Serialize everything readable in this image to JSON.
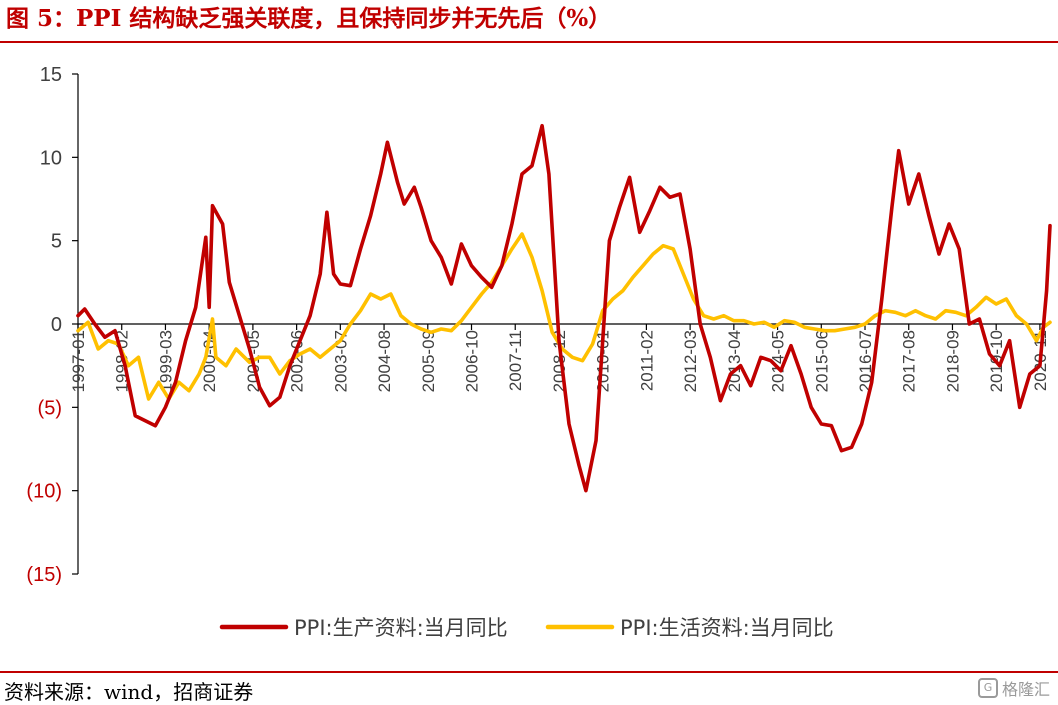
{
  "title": "图 5：PPI 结构缺乏强关联度，且保持同步并无先后（%）",
  "source": "资料来源：wind，招商证券",
  "watermark": "格隆汇",
  "chart_data": {
    "type": "line",
    "title": "图 5：PPI 结构缺乏强关联度，且保持同步并无先后（%）",
    "xlabel": "",
    "ylabel": "",
    "ylim": [
      -15,
      15
    ],
    "y_ticks": [
      15,
      10,
      5,
      0,
      -5,
      -10,
      -15
    ],
    "y_tick_labels": [
      "15",
      "10",
      "5",
      "0",
      "(5)",
      "(10)",
      "(15)"
    ],
    "x_range": [
      "1997-01",
      "2021-02"
    ],
    "x_tick_labels": [
      "1997-01",
      "1998-02",
      "1999-03",
      "2000-04",
      "2001-05",
      "2002-06",
      "2003-07",
      "2004-08",
      "2005-09",
      "2006-10",
      "2007-11",
      "2008-12",
      "2010-01",
      "2011-02",
      "2012-03",
      "2013-04",
      "2014-05",
      "2015-06",
      "2016-07",
      "2017-08",
      "2018-09",
      "2019-10",
      "2020-11"
    ],
    "grid": false,
    "legend_position": "bottom",
    "colors": {
      "series1": "#c00000",
      "series2": "#ffc000",
      "negative_tick": "#c00000",
      "axis": "#000000"
    },
    "series": [
      {
        "name": "PPI:生产资料:当月同比",
        "points": [
          [
            "1997-01",
            0.5
          ],
          [
            "1997-03",
            0.9
          ],
          [
            "1997-06",
            0
          ],
          [
            "1997-09",
            -0.8
          ],
          [
            "1997-12",
            -0.4
          ],
          [
            "1998-03",
            -2.5
          ],
          [
            "1998-06",
            -5.5
          ],
          [
            "1998-09",
            -5.8
          ],
          [
            "1998-12",
            -6.1
          ],
          [
            "1999-03",
            -5
          ],
          [
            "1999-06",
            -3.5
          ],
          [
            "1999-09",
            -1
          ],
          [
            "1999-12",
            1
          ],
          [
            "2000-03",
            5.2
          ],
          [
            "2000-04",
            1
          ],
          [
            "2000-05",
            7.1
          ],
          [
            "2000-08",
            6
          ],
          [
            "2000-10",
            2.5
          ],
          [
            "2001-01",
            0.5
          ],
          [
            "2001-04",
            -1.5
          ],
          [
            "2001-07",
            -3.8
          ],
          [
            "2001-10",
            -4.9
          ],
          [
            "2002-01",
            -4.4
          ],
          [
            "2002-04",
            -2.5
          ],
          [
            "2002-07",
            -1
          ],
          [
            "2002-10",
            0.5
          ],
          [
            "2003-01",
            3
          ],
          [
            "2003-03",
            6.7
          ],
          [
            "2003-05",
            3
          ],
          [
            "2003-07",
            2.4
          ],
          [
            "2003-10",
            2.3
          ],
          [
            "2004-01",
            4.5
          ],
          [
            "2004-04",
            6.5
          ],
          [
            "2004-07",
            9
          ],
          [
            "2004-09",
            10.9
          ],
          [
            "2004-12",
            8.5
          ],
          [
            "2005-02",
            7.2
          ],
          [
            "2005-05",
            8.2
          ],
          [
            "2005-07",
            7
          ],
          [
            "2005-10",
            5
          ],
          [
            "2006-01",
            4
          ],
          [
            "2006-04",
            2.4
          ],
          [
            "2006-07",
            4.8
          ],
          [
            "2006-10",
            3.5
          ],
          [
            "2007-01",
            2.8
          ],
          [
            "2007-04",
            2.2
          ],
          [
            "2007-07",
            3.5
          ],
          [
            "2007-10",
            6
          ],
          [
            "2008-01",
            9
          ],
          [
            "2008-04",
            9.5
          ],
          [
            "2008-07",
            11.9
          ],
          [
            "2008-09",
            9
          ],
          [
            "2008-12",
            -1
          ],
          [
            "2009-03",
            -6
          ],
          [
            "2009-06",
            -8.5
          ],
          [
            "2009-08",
            -10
          ],
          [
            "2009-11",
            -7
          ],
          [
            "2010-01",
            -1
          ],
          [
            "2010-03",
            5
          ],
          [
            "2010-06",
            7
          ],
          [
            "2010-09",
            8.8
          ],
          [
            "2010-12",
            5.5
          ],
          [
            "2011-03",
            6.8
          ],
          [
            "2011-06",
            8.2
          ],
          [
            "2011-09",
            7.6
          ],
          [
            "2011-12",
            7.8
          ],
          [
            "2012-03",
            4.5
          ],
          [
            "2012-06",
            0
          ],
          [
            "2012-09",
            -2
          ],
          [
            "2012-12",
            -4.6
          ],
          [
            "2013-03",
            -3
          ],
          [
            "2013-06",
            -2.5
          ],
          [
            "2013-09",
            -3.7
          ],
          [
            "2013-12",
            -2
          ],
          [
            "2014-03",
            -2.2
          ],
          [
            "2014-06",
            -2.8
          ],
          [
            "2014-09",
            -1.3
          ],
          [
            "2014-12",
            -3
          ],
          [
            "2015-03",
            -5
          ],
          [
            "2015-06",
            -6
          ],
          [
            "2015-09",
            -6.1
          ],
          [
            "2015-12",
            -7.6
          ],
          [
            "2016-03",
            -7.4
          ],
          [
            "2016-06",
            -6
          ],
          [
            "2016-09",
            -3.5
          ],
          [
            "2016-12",
            1.5
          ],
          [
            "2017-03",
            7
          ],
          [
            "2017-05",
            10.4
          ],
          [
            "2017-08",
            7.2
          ],
          [
            "2017-11",
            9
          ],
          [
            "2018-02",
            6.5
          ],
          [
            "2018-05",
            4.2
          ],
          [
            "2018-08",
            6
          ],
          [
            "2018-11",
            4.5
          ],
          [
            "2019-02",
            0
          ],
          [
            "2019-05",
            0.3
          ],
          [
            "2019-08",
            -1.8
          ],
          [
            "2019-11",
            -2.5
          ],
          [
            "2020-02",
            -1
          ],
          [
            "2020-05",
            -5
          ],
          [
            "2020-08",
            -3
          ],
          [
            "2020-11",
            -2.5
          ],
          [
            "2021-01",
            2
          ],
          [
            "2021-02",
            5.9
          ]
        ]
      },
      {
        "name": "PPI:生活资料:当月同比",
        "points": [
          [
            "1997-01",
            -0.4
          ],
          [
            "1997-04",
            0.1
          ],
          [
            "1997-07",
            -1.5
          ],
          [
            "1997-10",
            -1
          ],
          [
            "1998-01",
            -1.2
          ],
          [
            "1998-04",
            -2.5
          ],
          [
            "1998-07",
            -2
          ],
          [
            "1998-10",
            -4.5
          ],
          [
            "1999-01",
            -3.5
          ],
          [
            "1999-04",
            -4.5
          ],
          [
            "1999-07",
            -3.5
          ],
          [
            "1999-10",
            -4
          ],
          [
            "2000-01",
            -3
          ],
          [
            "2000-03",
            -2
          ],
          [
            "2000-05",
            0.3
          ],
          [
            "2000-06",
            -2
          ],
          [
            "2000-09",
            -2.5
          ],
          [
            "2000-12",
            -1.5
          ],
          [
            "2001-04",
            -2.3
          ],
          [
            "2001-07",
            -2
          ],
          [
            "2001-10",
            -2
          ],
          [
            "2002-01",
            -3
          ],
          [
            "2002-04",
            -2.2
          ],
          [
            "2002-07",
            -1.8
          ],
          [
            "2002-10",
            -1.5
          ],
          [
            "2003-01",
            -2
          ],
          [
            "2003-04",
            -1.5
          ],
          [
            "2003-07",
            -1
          ],
          [
            "2003-10",
            0
          ],
          [
            "2004-01",
            0.8
          ],
          [
            "2004-04",
            1.8
          ],
          [
            "2004-07",
            1.5
          ],
          [
            "2004-10",
            1.8
          ],
          [
            "2005-01",
            0.5
          ],
          [
            "2005-04",
            0
          ],
          [
            "2005-07",
            -0.3
          ],
          [
            "2005-10",
            -0.5
          ],
          [
            "2006-01",
            -0.3
          ],
          [
            "2006-04",
            -0.4
          ],
          [
            "2006-07",
            0.2
          ],
          [
            "2006-10",
            1
          ],
          [
            "2007-01",
            1.8
          ],
          [
            "2007-04",
            2.5
          ],
          [
            "2007-07",
            3.5
          ],
          [
            "2007-10",
            4.5
          ],
          [
            "2008-01",
            5.4
          ],
          [
            "2008-04",
            4
          ],
          [
            "2008-07",
            2
          ],
          [
            "2008-10",
            -0.5
          ],
          [
            "2009-01",
            -1.5
          ],
          [
            "2009-04",
            -2
          ],
          [
            "2009-07",
            -2.2
          ],
          [
            "2009-10",
            -1.2
          ],
          [
            "2010-01",
            0.8
          ],
          [
            "2010-04",
            1.5
          ],
          [
            "2010-07",
            2
          ],
          [
            "2010-10",
            2.8
          ],
          [
            "2011-01",
            3.5
          ],
          [
            "2011-04",
            4.2
          ],
          [
            "2011-07",
            4.7
          ],
          [
            "2011-10",
            4.5
          ],
          [
            "2012-01",
            3
          ],
          [
            "2012-04",
            1.5
          ],
          [
            "2012-07",
            0.5
          ],
          [
            "2012-10",
            0.3
          ],
          [
            "2013-01",
            0.5
          ],
          [
            "2013-04",
            0.2
          ],
          [
            "2013-07",
            0.2
          ],
          [
            "2013-10",
            0
          ],
          [
            "2014-01",
            0.1
          ],
          [
            "2014-04",
            -0.2
          ],
          [
            "2014-07",
            0.2
          ],
          [
            "2014-10",
            0.1
          ],
          [
            "2015-01",
            -0.2
          ],
          [
            "2015-04",
            -0.3
          ],
          [
            "2015-07",
            -0.4
          ],
          [
            "2015-10",
            -0.4
          ],
          [
            "2016-01",
            -0.3
          ],
          [
            "2016-04",
            -0.2
          ],
          [
            "2016-07",
            0
          ],
          [
            "2016-10",
            0.5
          ],
          [
            "2017-01",
            0.8
          ],
          [
            "2017-04",
            0.7
          ],
          [
            "2017-07",
            0.5
          ],
          [
            "2017-10",
            0.8
          ],
          [
            "2018-01",
            0.5
          ],
          [
            "2018-04",
            0.3
          ],
          [
            "2018-07",
            0.8
          ],
          [
            "2018-10",
            0.7
          ],
          [
            "2019-01",
            0.5
          ],
          [
            "2019-04",
            1
          ],
          [
            "2019-07",
            1.6
          ],
          [
            "2019-10",
            1.2
          ],
          [
            "2020-01",
            1.5
          ],
          [
            "2020-04",
            0.5
          ],
          [
            "2020-07",
            0
          ],
          [
            "2020-10",
            -1
          ],
          [
            "2020-12",
            -0.2
          ],
          [
            "2021-02",
            0.1
          ]
        ]
      }
    ]
  }
}
